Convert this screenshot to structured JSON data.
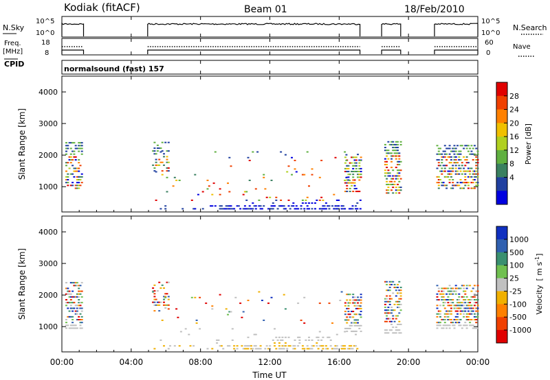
{
  "header": {
    "station": "Kodiak (fitACF)",
    "beam": "Beam 01",
    "date": "18/Feb/2010"
  },
  "nsky_panel": {
    "left_label": "N.Sky",
    "right_label": "N.Search",
    "left_ticks": [
      "10^5",
      "10^0"
    ],
    "right_ticks": [
      "10^5",
      "10^0"
    ]
  },
  "freq_panel": {
    "left_label_1": "Freq.",
    "left_label_2": "[MHz]",
    "right_label": "Nave",
    "left_ticks": [
      "18",
      "8"
    ],
    "right_ticks": [
      "60",
      "0"
    ]
  },
  "cpid": {
    "label": "CPID",
    "program": "normalsound (fast) 157"
  },
  "chart_data": [
    {
      "type": "scatter",
      "name": "power-panel",
      "ylabel": "Slant Range [km]",
      "ylim": [
        200,
        4500
      ],
      "yticks": [
        1000,
        2000,
        3000,
        4000
      ],
      "xlim": [
        0,
        24
      ],
      "colorbar": {
        "label": "Power [dB]",
        "ticks": [
          "28",
          "24",
          "20",
          "16",
          "12",
          "8",
          "4"
        ],
        "colors": [
          "#0000e0",
          "#2040a0",
          "#3a8060",
          "#60b040",
          "#b0d020",
          "#f0c000",
          "#ff8000",
          "#f04000",
          "#e00000"
        ]
      }
    },
    {
      "type": "scatter",
      "name": "velocity-panel",
      "ylabel": "Slant Range [km]",
      "ylim": [
        200,
        4500
      ],
      "yticks": [
        1000,
        2000,
        3000,
        4000
      ],
      "xlim": [
        0,
        24
      ],
      "colorbar": {
        "label": "Velocity",
        "unit": "[ m s",
        "unit_exp": "-1",
        "unit_close": "]",
        "ticks": [
          "1000",
          "500",
          "100",
          "25",
          "-25",
          "-100",
          "-500",
          "-1000"
        ],
        "colors": [
          "#1030c0",
          "#3060b0",
          "#3a9070",
          "#70c050",
          "#c0c0c0",
          "#f0b000",
          "#ff8000",
          "#f04000",
          "#e00000"
        ]
      }
    }
  ],
  "time_axis": {
    "xlabel": "Time UT",
    "ticks": [
      "00:00",
      "04:00",
      "08:00",
      "12:00",
      "16:00",
      "20:00",
      "00:00"
    ]
  }
}
